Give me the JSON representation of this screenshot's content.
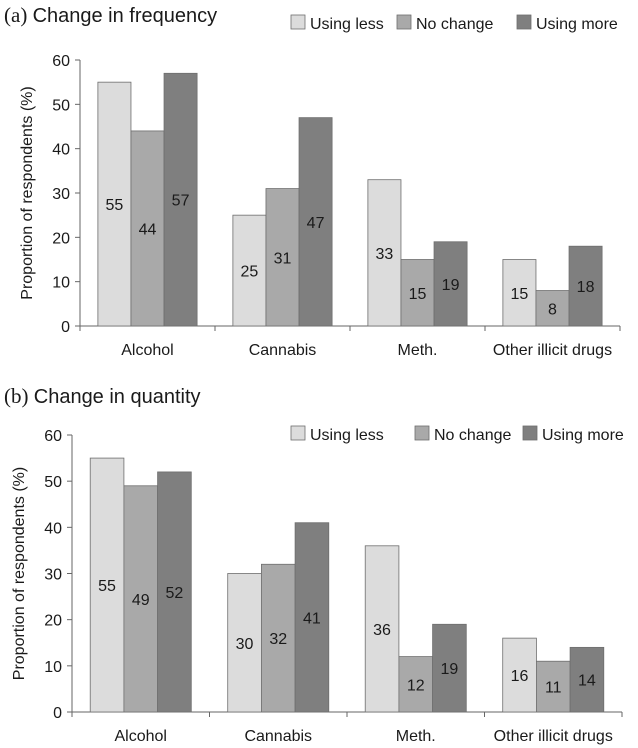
{
  "chart_data": [
    {
      "type": "bar",
      "panel_letter": "(a)",
      "title": "Change in frequency",
      "ylabel": "Proportion of respondents (%)",
      "xlabel": "",
      "ylim": [
        0,
        60
      ],
      "yticks": [
        0,
        10,
        20,
        30,
        40,
        50,
        60
      ],
      "grid": false,
      "legend_position": "top-right",
      "categories": [
        "Alcohol",
        "Cannabis",
        "Meth.",
        "Other illicit drugs"
      ],
      "series": [
        {
          "name": "Using less",
          "color": "#dcdcdc",
          "values": [
            55,
            25,
            33,
            15
          ]
        },
        {
          "name": "No change",
          "color": "#a9a9a9",
          "values": [
            44,
            31,
            15,
            8
          ]
        },
        {
          "name": "Using more",
          "color": "#7f7f7f",
          "values": [
            57,
            47,
            19,
            18
          ]
        }
      ]
    },
    {
      "type": "bar",
      "panel_letter": "(b)",
      "title": "Change in quantity",
      "ylabel": "Proportion of respondents (%)",
      "xlabel": "",
      "ylim": [
        0,
        60
      ],
      "yticks": [
        0,
        10,
        20,
        30,
        40,
        50,
        60
      ],
      "grid": false,
      "legend_position": "top-right",
      "categories": [
        "Alcohol",
        "Cannabis",
        "Meth.",
        "Other illicit drugs"
      ],
      "series": [
        {
          "name": "Using less",
          "color": "#dcdcdc",
          "values": [
            55,
            30,
            36,
            16
          ]
        },
        {
          "name": "No change",
          "color": "#a9a9a9",
          "values": [
            49,
            32,
            12,
            11
          ]
        },
        {
          "name": "Using more",
          "color": "#7f7f7f",
          "values": [
            52,
            41,
            19,
            14
          ]
        }
      ]
    }
  ]
}
